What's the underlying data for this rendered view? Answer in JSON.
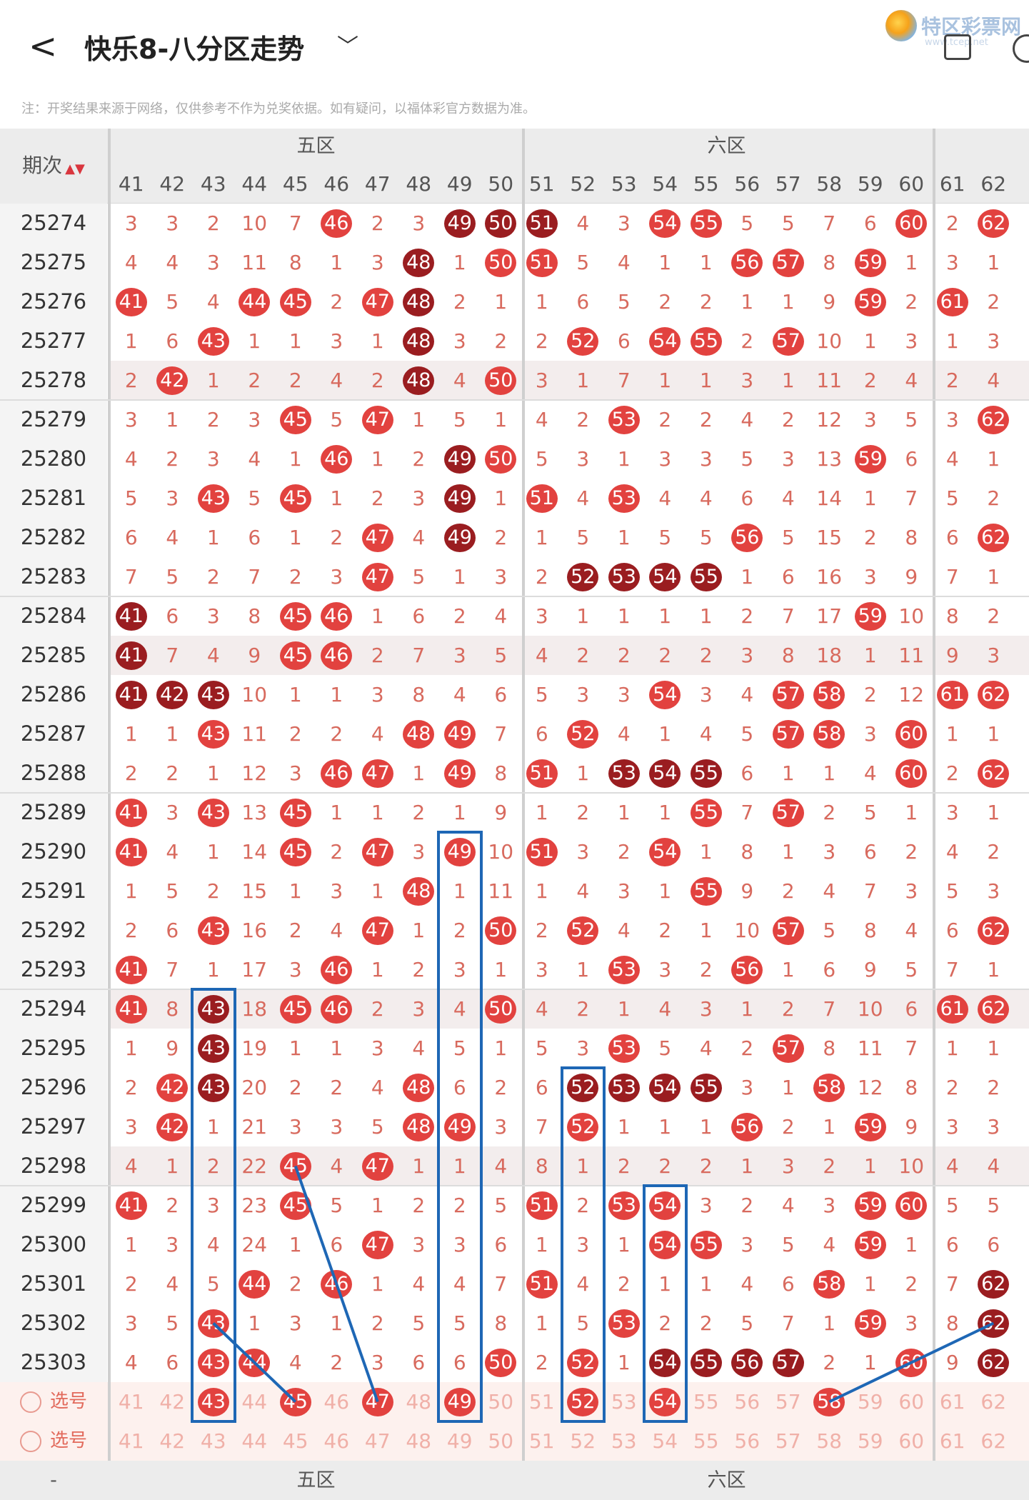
{
  "header": {
    "back_glyph": "<",
    "title": "快乐8-八分区走势",
    "dropdown_glyph": "﹀",
    "logo_text": "特区彩票网",
    "logo_sub": "www.tcep.net",
    "note": "注：开奖结果来源于网络，仅供参考不作为兑奖依据。如有疑问，以福体彩官方数据为准。"
  },
  "table": {
    "period_header": "期次",
    "sort_glyph": "▲▼",
    "zones": [
      "五区",
      "六区"
    ],
    "columns": [
      "41",
      "42",
      "43",
      "44",
      "45",
      "46",
      "47",
      "48",
      "49",
      "50",
      "51",
      "52",
      "53",
      "54",
      "55",
      "56",
      "57",
      "58",
      "59",
      "60",
      "61",
      "62"
    ],
    "rows": [
      {
        "p": "25274",
        "v": [
          "3",
          "3",
          "2",
          "10",
          "7",
          "r46",
          "2",
          "3",
          "d49",
          "d50",
          "d51",
          "4",
          "3",
          "r54",
          "r55",
          "5",
          "5",
          "7",
          "6",
          "r60",
          "2",
          "r62"
        ]
      },
      {
        "p": "25275",
        "v": [
          "4",
          "4",
          "3",
          "11",
          "8",
          "1",
          "3",
          "d48",
          "1",
          "r50",
          "r51",
          "5",
          "4",
          "1",
          "1",
          "r56",
          "r57",
          "8",
          "r59",
          "1",
          "3",
          "1"
        ]
      },
      {
        "p": "25276",
        "v": [
          "r41",
          "5",
          "4",
          "r44",
          "r45",
          "2",
          "r47",
          "d48",
          "2",
          "1",
          "1",
          "6",
          "5",
          "2",
          "2",
          "1",
          "1",
          "9",
          "r59",
          "2",
          "r61",
          "2"
        ]
      },
      {
        "p": "25277",
        "v": [
          "1",
          "6",
          "r43",
          "1",
          "1",
          "3",
          "1",
          "d48",
          "3",
          "2",
          "2",
          "r52",
          "6",
          "r54",
          "r55",
          "2",
          "r57",
          "10",
          "1",
          "3",
          "1",
          "3"
        ]
      },
      {
        "p": "25278",
        "v": [
          "2",
          "r42",
          "1",
          "2",
          "2",
          "4",
          "2",
          "d48",
          "4",
          "r50",
          "3",
          "1",
          "7",
          "1",
          "1",
          "3",
          "1",
          "11",
          "2",
          "4",
          "2",
          "4"
        ],
        "shade": true
      },
      {
        "p": "25279",
        "v": [
          "3",
          "1",
          "2",
          "3",
          "r45",
          "5",
          "r47",
          "1",
          "5",
          "1",
          "4",
          "2",
          "r53",
          "2",
          "2",
          "4",
          "2",
          "12",
          "3",
          "5",
          "3",
          "r62"
        ]
      },
      {
        "p": "25280",
        "v": [
          "4",
          "2",
          "3",
          "4",
          "1",
          "r46",
          "1",
          "2",
          "d49",
          "r50",
          "5",
          "3",
          "1",
          "3",
          "3",
          "5",
          "3",
          "13",
          "r59",
          "6",
          "4",
          "1"
        ]
      },
      {
        "p": "25281",
        "v": [
          "5",
          "3",
          "r43",
          "5",
          "r45",
          "1",
          "2",
          "3",
          "d49",
          "1",
          "r51",
          "4",
          "r53",
          "4",
          "4",
          "6",
          "4",
          "14",
          "1",
          "7",
          "5",
          "2"
        ]
      },
      {
        "p": "25282",
        "v": [
          "6",
          "4",
          "1",
          "6",
          "1",
          "2",
          "r47",
          "4",
          "d49",
          "2",
          "1",
          "5",
          "1",
          "5",
          "5",
          "r56",
          "5",
          "15",
          "2",
          "8",
          "6",
          "r62"
        ]
      },
      {
        "p": "25283",
        "v": [
          "7",
          "5",
          "2",
          "7",
          "2",
          "3",
          "r47",
          "5",
          "1",
          "3",
          "2",
          "d52",
          "d53",
          "d54",
          "d55",
          "1",
          "6",
          "16",
          "3",
          "9",
          "7",
          "1"
        ]
      },
      {
        "p": "25284",
        "v": [
          "d41",
          "6",
          "3",
          "8",
          "r45",
          "r46",
          "1",
          "6",
          "2",
          "4",
          "3",
          "1",
          "1",
          "1",
          "1",
          "2",
          "7",
          "17",
          "r59",
          "10",
          "8",
          "2"
        ]
      },
      {
        "p": "25285",
        "v": [
          "d41",
          "7",
          "4",
          "9",
          "r45",
          "r46",
          "2",
          "7",
          "3",
          "5",
          "4",
          "2",
          "2",
          "2",
          "2",
          "3",
          "8",
          "18",
          "1",
          "11",
          "9",
          "3"
        ],
        "shade": true
      },
      {
        "p": "25286",
        "v": [
          "d41",
          "d42",
          "d43",
          "10",
          "1",
          "1",
          "3",
          "8",
          "4",
          "6",
          "5",
          "3",
          "3",
          "r54",
          "3",
          "4",
          "r57",
          "r58",
          "2",
          "12",
          "r61",
          "r62"
        ]
      },
      {
        "p": "25287",
        "v": [
          "1",
          "1",
          "r43",
          "11",
          "2",
          "2",
          "4",
          "r48",
          "r49",
          "7",
          "6",
          "r52",
          "4",
          "1",
          "4",
          "5",
          "r57",
          "r58",
          "3",
          "r60",
          "1",
          "1"
        ]
      },
      {
        "p": "25288",
        "v": [
          "2",
          "2",
          "1",
          "12",
          "3",
          "r46",
          "r47",
          "1",
          "r49",
          "8",
          "r51",
          "1",
          "d53",
          "d54",
          "d55",
          "6",
          "1",
          "1",
          "4",
          "r60",
          "2",
          "r62"
        ]
      },
      {
        "p": "25289",
        "v": [
          "r41",
          "3",
          "r43",
          "13",
          "r45",
          "1",
          "1",
          "2",
          "1",
          "9",
          "1",
          "2",
          "1",
          "1",
          "r55",
          "7",
          "r57",
          "2",
          "5",
          "1",
          "3",
          "1"
        ]
      },
      {
        "p": "25290",
        "v": [
          "r41",
          "4",
          "1",
          "14",
          "r45",
          "2",
          "r47",
          "3",
          "r49",
          "10",
          "r51",
          "3",
          "2",
          "r54",
          "1",
          "8",
          "1",
          "3",
          "6",
          "2",
          "4",
          "2"
        ]
      },
      {
        "p": "25291",
        "v": [
          "1",
          "5",
          "2",
          "15",
          "1",
          "3",
          "1",
          "r48",
          "1",
          "11",
          "1",
          "4",
          "3",
          "1",
          "r55",
          "9",
          "2",
          "4",
          "7",
          "3",
          "5",
          "3"
        ]
      },
      {
        "p": "25292",
        "v": [
          "2",
          "6",
          "r43",
          "16",
          "2",
          "4",
          "r47",
          "1",
          "2",
          "r50",
          "2",
          "r52",
          "4",
          "2",
          "1",
          "10",
          "r57",
          "5",
          "8",
          "4",
          "6",
          "r62"
        ]
      },
      {
        "p": "25293",
        "v": [
          "r41",
          "7",
          "1",
          "17",
          "3",
          "r46",
          "1",
          "2",
          "3",
          "1",
          "3",
          "1",
          "r53",
          "3",
          "2",
          "r56",
          "1",
          "6",
          "9",
          "5",
          "7",
          "1"
        ]
      },
      {
        "p": "25294",
        "v": [
          "r41",
          "8",
          "d43",
          "18",
          "r45",
          "r46",
          "2",
          "3",
          "4",
          "r50",
          "4",
          "2",
          "1",
          "4",
          "3",
          "1",
          "2",
          "7",
          "10",
          "6",
          "r61",
          "r62"
        ],
        "shade": true
      },
      {
        "p": "25295",
        "v": [
          "1",
          "9",
          "d43",
          "19",
          "1",
          "1",
          "3",
          "4",
          "5",
          "1",
          "5",
          "3",
          "r53",
          "5",
          "4",
          "2",
          "r57",
          "8",
          "11",
          "7",
          "1",
          "1"
        ]
      },
      {
        "p": "25296",
        "v": [
          "2",
          "r42",
          "d43",
          "20",
          "2",
          "2",
          "4",
          "r48",
          "6",
          "2",
          "6",
          "d52",
          "d53",
          "d54",
          "d55",
          "3",
          "1",
          "r58",
          "12",
          "8",
          "2",
          "2"
        ]
      },
      {
        "p": "25297",
        "v": [
          "3",
          "r42",
          "1",
          "21",
          "3",
          "3",
          "5",
          "r48",
          "r49",
          "3",
          "7",
          "r52",
          "1",
          "1",
          "1",
          "r56",
          "2",
          "1",
          "r59",
          "9",
          "3",
          "3"
        ]
      },
      {
        "p": "25298",
        "v": [
          "4",
          "1",
          "2",
          "22",
          "r45",
          "4",
          "r47",
          "1",
          "1",
          "4",
          "8",
          "1",
          "2",
          "2",
          "2",
          "1",
          "3",
          "2",
          "1",
          "10",
          "4",
          "4"
        ],
        "shade": true
      },
      {
        "p": "25299",
        "v": [
          "r41",
          "2",
          "3",
          "23",
          "r45",
          "5",
          "1",
          "2",
          "2",
          "5",
          "r51",
          "2",
          "r53",
          "r54",
          "3",
          "2",
          "4",
          "3",
          "r59",
          "r60",
          "5",
          "5"
        ]
      },
      {
        "p": "25300",
        "v": [
          "1",
          "3",
          "4",
          "24",
          "1",
          "6",
          "r47",
          "3",
          "3",
          "6",
          "1",
          "3",
          "1",
          "r54",
          "r55",
          "3",
          "5",
          "4",
          "r59",
          "1",
          "6",
          "6"
        ]
      },
      {
        "p": "25301",
        "v": [
          "2",
          "4",
          "5",
          "r44",
          "2",
          "r46",
          "1",
          "4",
          "4",
          "7",
          "r51",
          "4",
          "2",
          "1",
          "1",
          "4",
          "6",
          "r58",
          "1",
          "2",
          "7",
          "d62"
        ]
      },
      {
        "p": "25302",
        "v": [
          "3",
          "5",
          "r43",
          "1",
          "3",
          "1",
          "2",
          "5",
          "5",
          "8",
          "1",
          "5",
          "r53",
          "2",
          "2",
          "5",
          "7",
          "1",
          "r59",
          "3",
          "8",
          "d62"
        ]
      },
      {
        "p": "25303",
        "v": [
          "4",
          "6",
          "r43",
          "r44",
          "4",
          "2",
          "3",
          "6",
          "6",
          "r50",
          "2",
          "r52",
          "1",
          "d54",
          "d55",
          "d56",
          "d57",
          "2",
          "1",
          "r60",
          "9",
          "d62"
        ]
      }
    ],
    "select_rows": [
      {
        "label": "选号",
        "v": [
          "41",
          "42",
          "r43",
          "44",
          "r45",
          "46",
          "r47",
          "48",
          "r49",
          "50",
          "51",
          "r52",
          "53",
          "r54",
          "55",
          "56",
          "57",
          "r58",
          "59",
          "60",
          "61",
          "62"
        ]
      },
      {
        "label": "选号",
        "v": [
          "41",
          "42",
          "43",
          "44",
          "45",
          "46",
          "47",
          "48",
          "49",
          "50",
          "51",
          "52",
          "53",
          "54",
          "55",
          "56",
          "57",
          "58",
          "59",
          "60",
          "61",
          "62"
        ]
      }
    ],
    "footer_zones": [
      "五区",
      "六区"
    ],
    "footer_left": "-"
  },
  "colors": {
    "ball_red": "#e2423f",
    "ball_dark": "#9a1d20",
    "annotation_blue": "#1e67b5",
    "miss_text": "#d86a5e"
  }
}
